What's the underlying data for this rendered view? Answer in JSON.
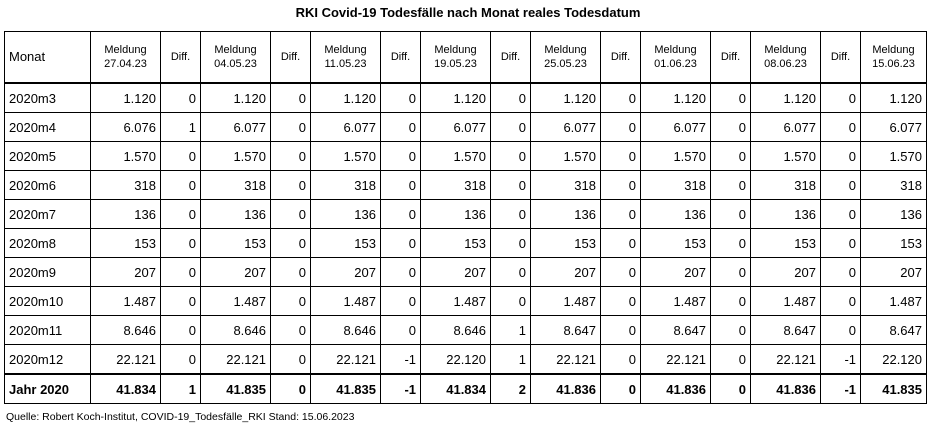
{
  "title": "RKI Covid-19 Todesfälle nach Monat reales Todesdatum",
  "table": {
    "month_header": "Monat",
    "diff_header": "Diff.",
    "report_prefix": "Meldung",
    "report_dates": [
      "27.04.23",
      "04.05.23",
      "11.05.23",
      "19.05.23",
      "25.05.23",
      "01.06.23",
      "08.06.23",
      "15.06.23"
    ],
    "rows": [
      {
        "month": "2020m3",
        "cells": [
          "1.120",
          "0",
          "1.120",
          "0",
          "1.120",
          "0",
          "1.120",
          "0",
          "1.120",
          "0",
          "1.120",
          "0",
          "1.120",
          "0",
          "1.120"
        ]
      },
      {
        "month": "2020m4",
        "cells": [
          "6.076",
          "1",
          "6.077",
          "0",
          "6.077",
          "0",
          "6.077",
          "0",
          "6.077",
          "0",
          "6.077",
          "0",
          "6.077",
          "0",
          "6.077"
        ]
      },
      {
        "month": "2020m5",
        "cells": [
          "1.570",
          "0",
          "1.570",
          "0",
          "1.570",
          "0",
          "1.570",
          "0",
          "1.570",
          "0",
          "1.570",
          "0",
          "1.570",
          "0",
          "1.570"
        ]
      },
      {
        "month": "2020m6",
        "cells": [
          "318",
          "0",
          "318",
          "0",
          "318",
          "0",
          "318",
          "0",
          "318",
          "0",
          "318",
          "0",
          "318",
          "0",
          "318"
        ]
      },
      {
        "month": "2020m7",
        "cells": [
          "136",
          "0",
          "136",
          "0",
          "136",
          "0",
          "136",
          "0",
          "136",
          "0",
          "136",
          "0",
          "136",
          "0",
          "136"
        ]
      },
      {
        "month": "2020m8",
        "cells": [
          "153",
          "0",
          "153",
          "0",
          "153",
          "0",
          "153",
          "0",
          "153",
          "0",
          "153",
          "0",
          "153",
          "0",
          "153"
        ]
      },
      {
        "month": "2020m9",
        "cells": [
          "207",
          "0",
          "207",
          "0",
          "207",
          "0",
          "207",
          "0",
          "207",
          "0",
          "207",
          "0",
          "207",
          "0",
          "207"
        ]
      },
      {
        "month": "2020m10",
        "cells": [
          "1.487",
          "0",
          "1.487",
          "0",
          "1.487",
          "0",
          "1.487",
          "0",
          "1.487",
          "0",
          "1.487",
          "0",
          "1.487",
          "0",
          "1.487"
        ]
      },
      {
        "month": "2020m11",
        "cells": [
          "8.646",
          "0",
          "8.646",
          "0",
          "8.646",
          "0",
          "8.646",
          "1",
          "8.647",
          "0",
          "8.647",
          "0",
          "8.647",
          "0",
          "8.647"
        ]
      },
      {
        "month": "2020m12",
        "cells": [
          "22.121",
          "0",
          "22.121",
          "0",
          "22.121",
          "-1",
          "22.120",
          "1",
          "22.121",
          "0",
          "22.121",
          "0",
          "22.121",
          "-1",
          "22.120"
        ]
      }
    ],
    "total": {
      "month": "Jahr 2020",
      "cells": [
        "41.834",
        "1",
        "41.835",
        "0",
        "41.835",
        "-1",
        "41.834",
        "2",
        "41.836",
        "0",
        "41.836",
        "0",
        "41.836",
        "-1",
        "41.835"
      ]
    }
  },
  "source": "Quelle: Robert Koch-Institut, COVID-19_Todesfälle_RKI Stand: 15.06.2023"
}
